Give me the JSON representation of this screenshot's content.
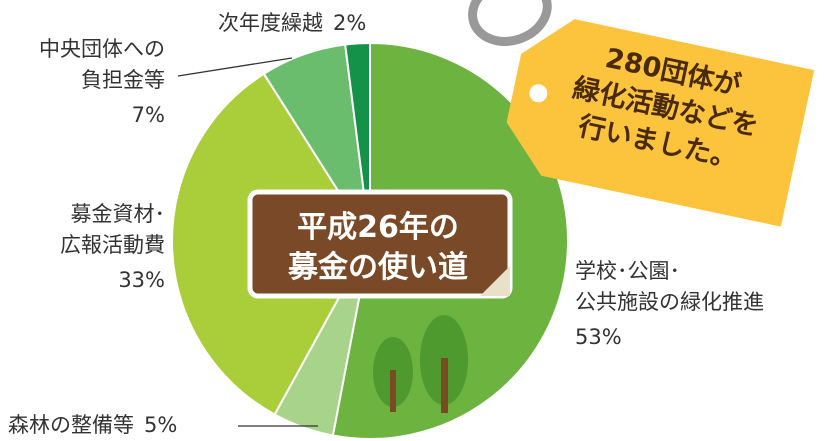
{
  "chart_data": {
    "type": "pie",
    "title": [
      "平成26年の",
      "募金の使い道"
    ],
    "annotation": [
      "280団体が",
      "緑化活動などを",
      "行いました。"
    ],
    "categories": [
      [
        "学校･公園･",
        "公共施設の緑化推進"
      ],
      [
        "森林の整備等"
      ],
      [
        "募金資材･",
        "広報活動費"
      ],
      [
        "中央団体への",
        "負担金等"
      ],
      [
        "次年度繰越"
      ]
    ],
    "values": [
      53,
      5,
      33,
      7,
      2
    ],
    "value_labels": [
      "53%",
      "5%",
      "33%",
      "7%",
      "2%"
    ],
    "colors": [
      "#6cb33f",
      "#a8d38a",
      "#aacd3a",
      "#6abd6c",
      "#14924a"
    ]
  }
}
